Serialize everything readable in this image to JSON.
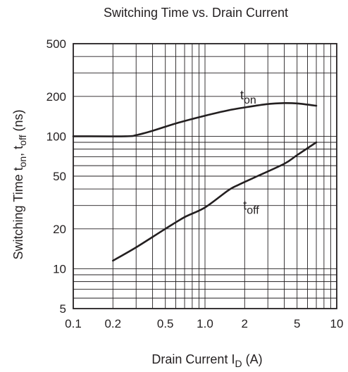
{
  "chart_data": {
    "type": "line",
    "title": "Switching Time vs. Drain Current",
    "xlabel": {
      "main": "Drain Current  I",
      "sub": "D",
      "unit": "  (A)"
    },
    "ylabel": {
      "pre": "Switching Time  t",
      "sub1": "on",
      "mid": ", t",
      "sub2": "off",
      "unit": "  (ns)"
    },
    "x_scale": "log",
    "y_scale": "log",
    "xlim": [
      0.1,
      10
    ],
    "ylim": [
      5,
      500
    ],
    "grid": true,
    "x_ticks": [
      {
        "value": 0.1,
        "label": "0.1"
      },
      {
        "value": 0.2,
        "label": "0.2"
      },
      {
        "value": 0.5,
        "label": "0.5"
      },
      {
        "value": 1,
        "label": "1.0"
      },
      {
        "value": 2,
        "label": "2"
      },
      {
        "value": 5,
        "label": "5"
      },
      {
        "value": 10,
        "label": "10"
      }
    ],
    "y_ticks": [
      {
        "value": 5,
        "label": "5"
      },
      {
        "value": 10,
        "label": "10"
      },
      {
        "value": 20,
        "label": "20"
      },
      {
        "value": 50,
        "label": "50"
      },
      {
        "value": 100,
        "label": "100"
      },
      {
        "value": 200,
        "label": "200"
      },
      {
        "value": 500,
        "label": "500"
      }
    ],
    "series": [
      {
        "name": "t_on",
        "label_main": "t",
        "label_sub": "on",
        "points": [
          [
            0.1,
            100
          ],
          [
            0.25,
            100
          ],
          [
            0.3,
            102
          ],
          [
            0.4,
            110
          ],
          [
            0.6,
            125
          ],
          [
            1.0,
            143
          ],
          [
            1.5,
            157
          ],
          [
            2.0,
            165
          ],
          [
            3.0,
            175
          ],
          [
            4.0,
            178
          ],
          [
            5.0,
            177
          ],
          [
            7.0,
            170
          ]
        ]
      },
      {
        "name": "t_off",
        "label_main": "t",
        "label_sub": "off",
        "points": [
          [
            0.2,
            11.5
          ],
          [
            0.3,
            14.5
          ],
          [
            0.5,
            20
          ],
          [
            0.7,
            24.5
          ],
          [
            1.0,
            29
          ],
          [
            1.5,
            39
          ],
          [
            1.8,
            43
          ],
          [
            2.5,
            50
          ],
          [
            4.0,
            62
          ],
          [
            5.0,
            72
          ],
          [
            7.0,
            90
          ]
        ]
      }
    ],
    "annotations": [
      {
        "series": "t_on",
        "x": 1.85,
        "y": 190
      },
      {
        "series": "t_off",
        "x": 1.95,
        "y": 28
      }
    ]
  }
}
